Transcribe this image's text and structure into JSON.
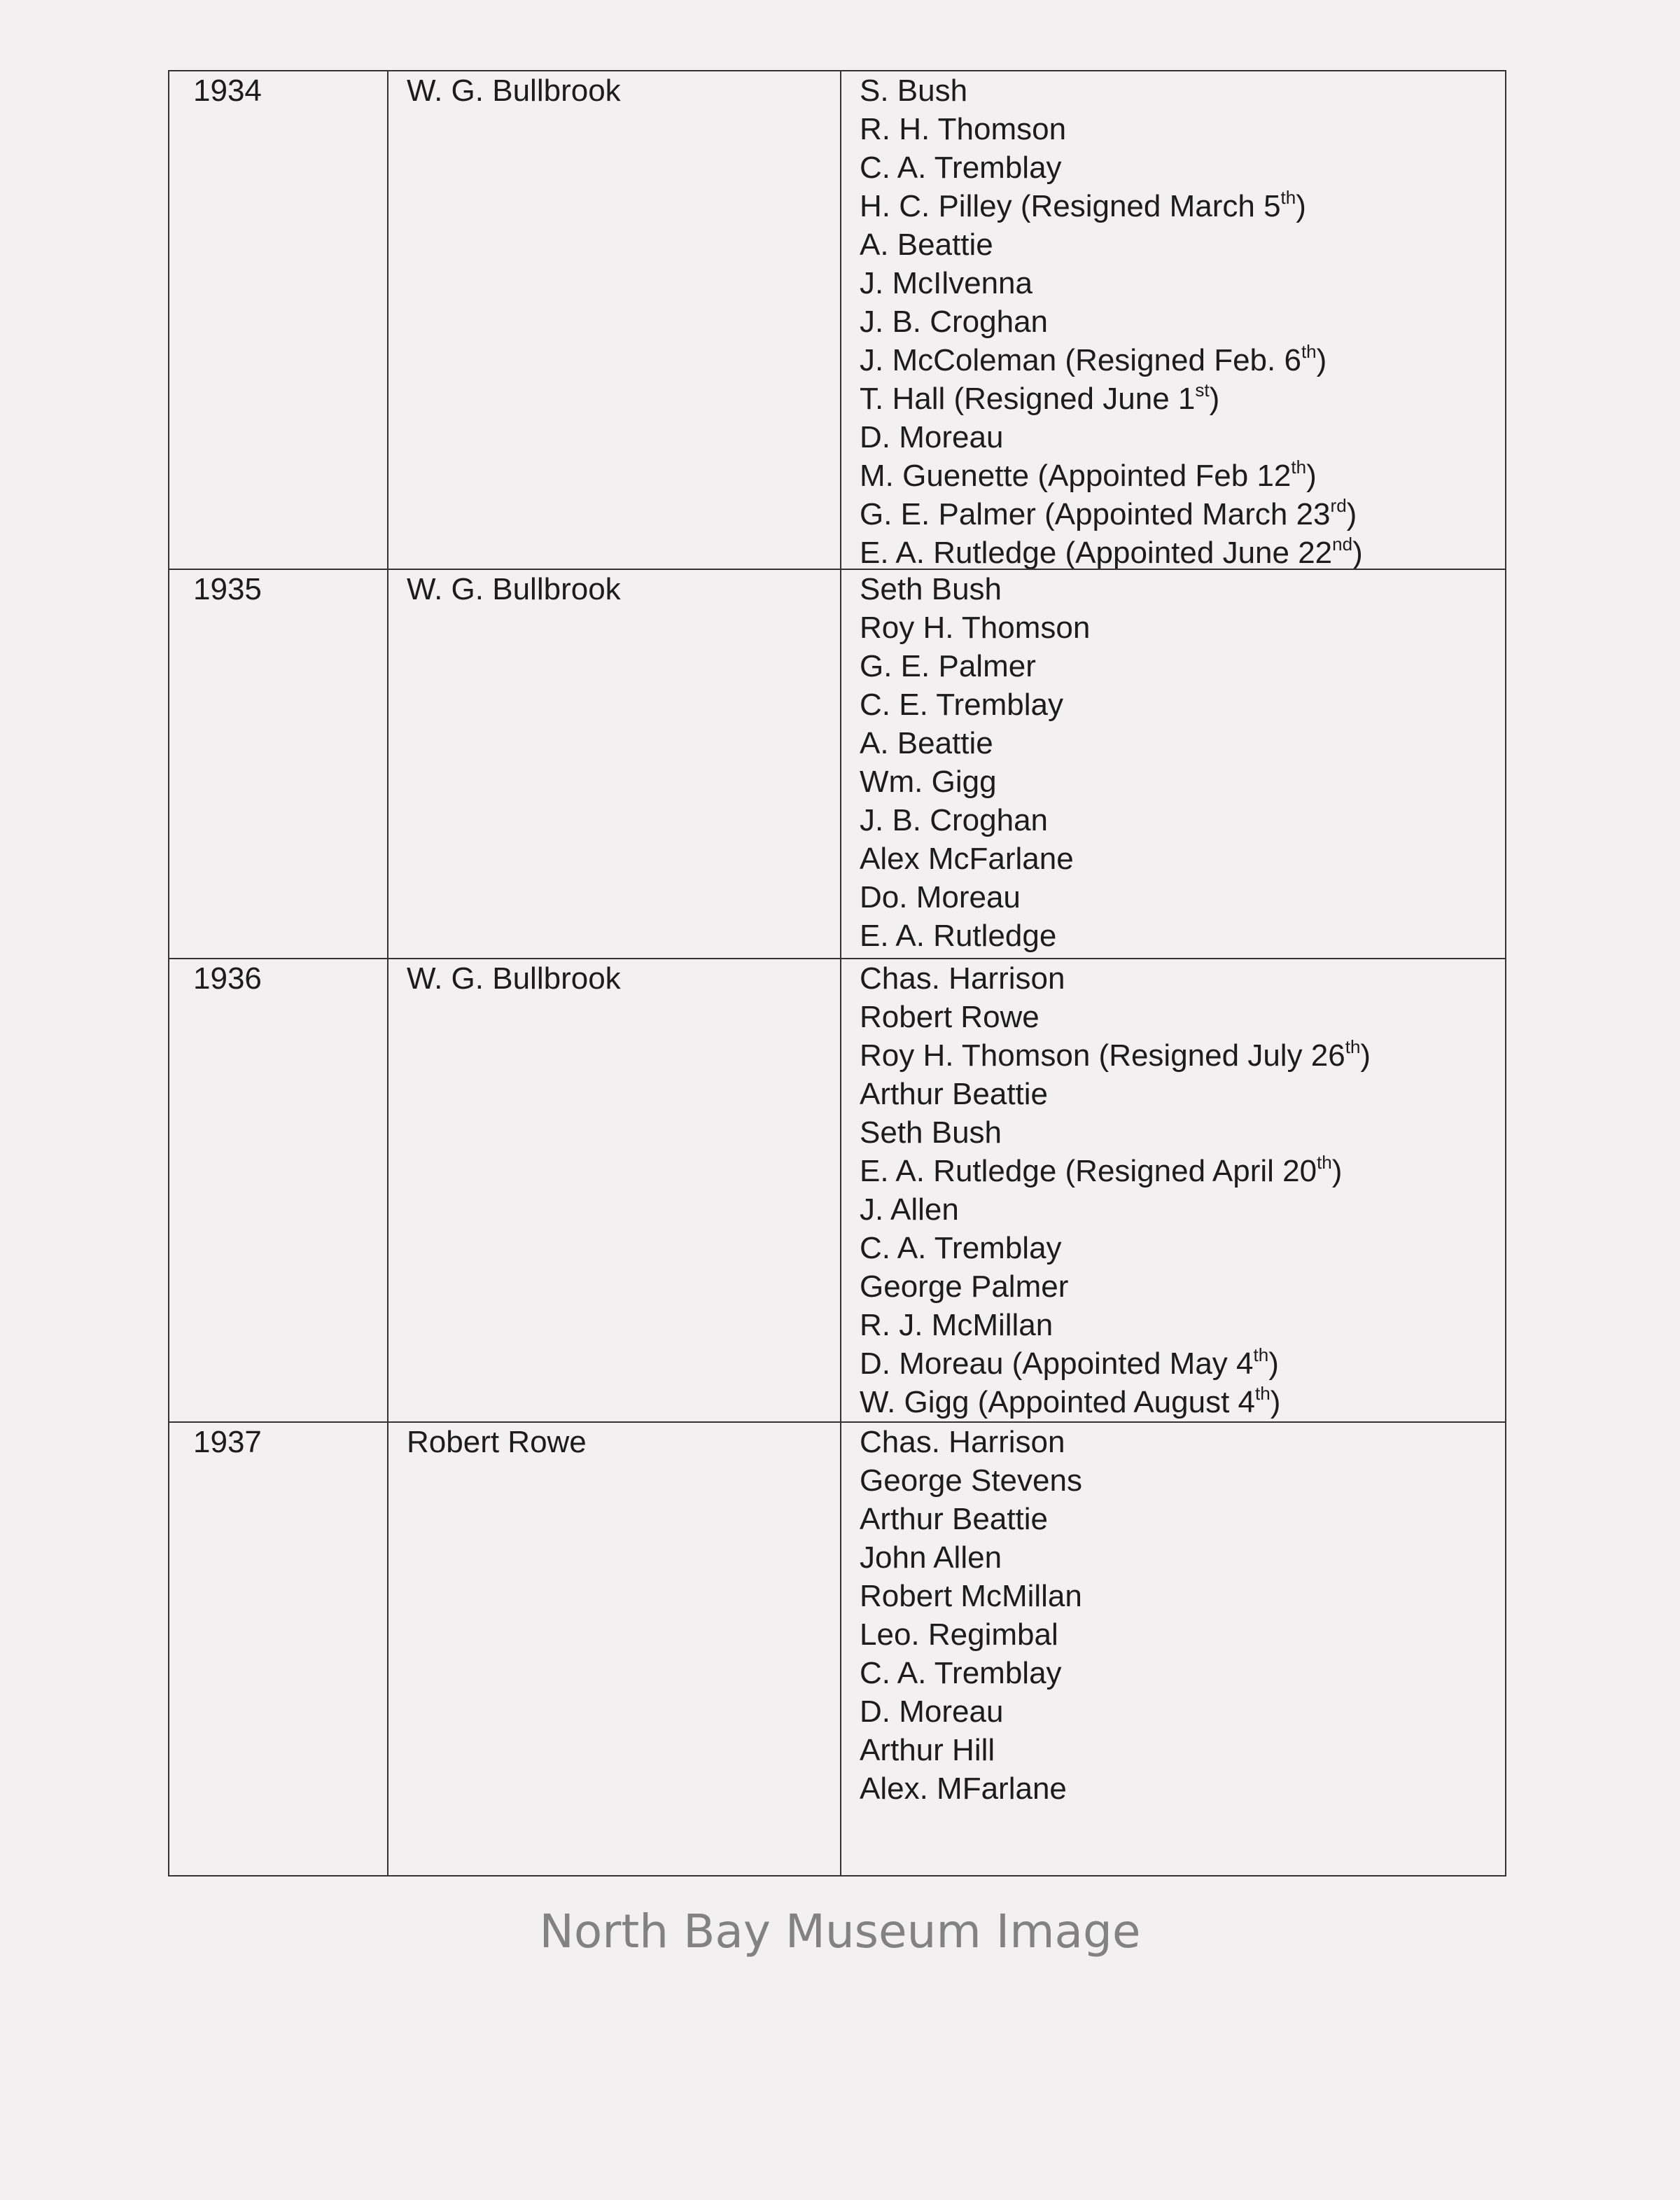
{
  "watermark": "North Bay Museum Image",
  "rows": [
    {
      "year": "1934",
      "mayor": "W. G. Bullbrook",
      "council": [
        {
          "main": "S. Bush"
        },
        {
          "main": "R. H. Thomson"
        },
        {
          "main": "C. A. Tremblay"
        },
        {
          "main": "H. C. Pilley (Resigned March 5",
          "sup": "th",
          "end": ")"
        },
        {
          "main": "A. Beattie"
        },
        {
          "main": "J. McIlvenna"
        },
        {
          "main": "J. B. Croghan"
        },
        {
          "main": "J. McColeman (Resigned Feb. 6",
          "sup": "th",
          "end": ")"
        },
        {
          "main": "T. Hall (Resigned June 1",
          "sup": "st",
          "end": ")"
        },
        {
          "main": "D. Moreau"
        },
        {
          "main": "M. Guenette (Appointed Feb 12",
          "sup": "th",
          "end": ")"
        },
        {
          "main": "G. E. Palmer (Appointed March 23",
          "sup": "rd",
          "end": ")"
        },
        {
          "main": "E. A. Rutledge (Appointed June 22",
          "sup": "nd",
          "end": ")"
        }
      ]
    },
    {
      "year": "1935",
      "mayor": "W. G. Bullbrook",
      "council": [
        {
          "main": "Seth Bush"
        },
        {
          "main": "Roy H. Thomson"
        },
        {
          "main": "G. E. Palmer"
        },
        {
          "main": "C. E. Tremblay"
        },
        {
          "main": "A. Beattie"
        },
        {
          "main": "Wm. Gigg"
        },
        {
          "main": "J. B. Croghan"
        },
        {
          "main": "Alex McFarlane"
        },
        {
          "main": "Do. Moreau"
        },
        {
          "main": "E. A. Rutledge"
        }
      ]
    },
    {
      "year": "1936",
      "mayor": "W. G. Bullbrook",
      "council": [
        {
          "main": "Chas. Harrison"
        },
        {
          "main": "Robert Rowe"
        },
        {
          "main": "Roy H. Thomson (Resigned July 26",
          "sup": "th",
          "end": ")"
        },
        {
          "main": "Arthur Beattie"
        },
        {
          "main": "Seth Bush"
        },
        {
          "main": "E. A. Rutledge (Resigned April 20",
          "sup": "th",
          "end": ")"
        },
        {
          "main": "J. Allen"
        },
        {
          "main": "C. A. Tremblay"
        },
        {
          "main": "George Palmer"
        },
        {
          "main": "R. J. McMillan"
        },
        {
          "main": "D. Moreau (Appointed May 4",
          "sup": "th",
          "end": ")"
        },
        {
          "main": "W. Gigg (Appointed August 4",
          "sup": "th",
          "end": ")"
        }
      ]
    },
    {
      "year": "1937",
      "mayor": "Robert Rowe",
      "council": [
        {
          "main": "Chas. Harrison"
        },
        {
          "main": "George Stevens"
        },
        {
          "main": "Arthur Beattie"
        },
        {
          "main": "John Allen"
        },
        {
          "main": "Robert McMillan"
        },
        {
          "main": "Leo. Regimbal"
        },
        {
          "main": "C. A. Tremblay"
        },
        {
          "main": "D. Moreau"
        },
        {
          "main": "Arthur Hill"
        },
        {
          "main": "Alex. MFarlane"
        }
      ]
    }
  ]
}
